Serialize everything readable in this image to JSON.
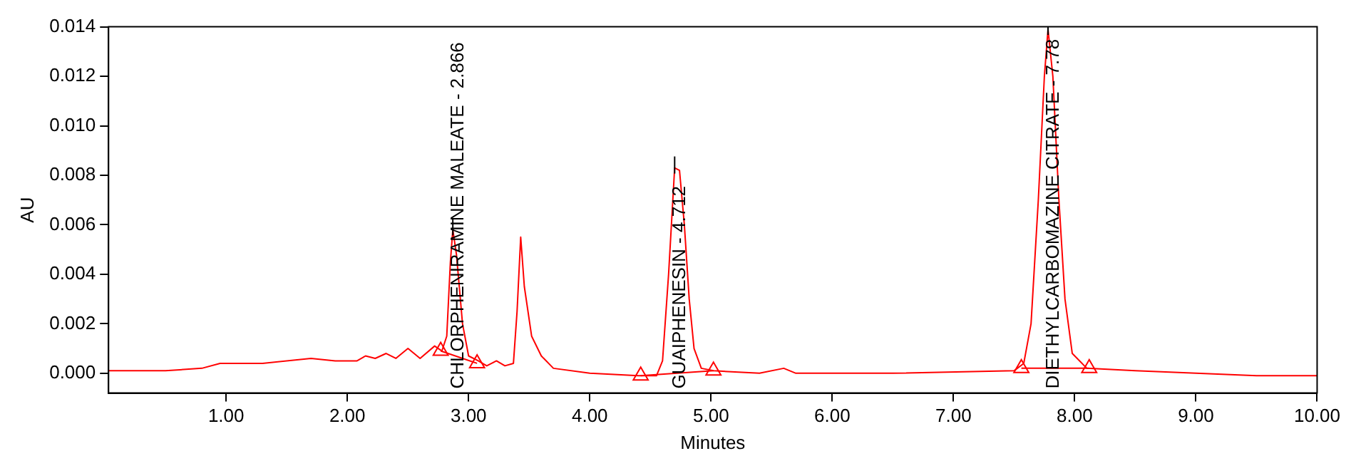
{
  "chart_data": {
    "type": "line",
    "xlabel": "Minutes",
    "ylabel": "AU",
    "xlim": [
      0.03,
      10
    ],
    "ylim": [
      -0.0008,
      0.014
    ],
    "xticks": [
      {
        "value": 1,
        "label": "1.00"
      },
      {
        "value": 2,
        "label": "2.00"
      },
      {
        "value": 3,
        "label": "3.00"
      },
      {
        "value": 4,
        "label": "4.00"
      },
      {
        "value": 5,
        "label": "5.00"
      },
      {
        "value": 6,
        "label": "6.00"
      },
      {
        "value": 7,
        "label": "7.00"
      },
      {
        "value": 8,
        "label": "8.00"
      },
      {
        "value": 9,
        "label": "9.00"
      },
      {
        "value": 10,
        "label": "10.00"
      }
    ],
    "yticks": [
      {
        "value": 0,
        "label": "0.000"
      },
      {
        "value": 0.002,
        "label": "0.002"
      },
      {
        "value": 0.004,
        "label": "0.004"
      },
      {
        "value": 0.006,
        "label": "0.006"
      },
      {
        "value": 0.008,
        "label": "0.008"
      },
      {
        "value": 0.01,
        "label": "0.010"
      },
      {
        "value": 0.012,
        "label": "0.012"
      },
      {
        "value": 0.014,
        "label": "0.014"
      }
    ],
    "grid": false,
    "legend": false,
    "series": [
      {
        "marker": "none",
        "color": "#ff0000",
        "x": [
          0.03,
          0.5,
          0.8,
          0.95,
          1.3,
          1.7,
          1.9,
          2.0,
          2.08,
          2.15,
          2.23,
          2.32,
          2.4,
          2.5,
          2.6,
          2.72,
          2.78,
          2.82,
          2.85,
          2.87,
          2.9,
          2.95,
          3.0,
          3.08,
          3.15,
          3.23,
          3.3,
          3.37,
          3.4,
          3.43,
          3.46,
          3.52,
          3.6,
          3.7,
          4.0,
          4.4,
          4.55,
          4.6,
          4.65,
          4.7,
          4.74,
          4.78,
          4.82,
          4.86,
          4.92,
          5.02,
          5.4,
          5.6,
          5.7,
          6.5,
          7.5,
          7.58,
          7.64,
          7.7,
          7.75,
          7.78,
          7.82,
          7.87,
          7.92,
          7.98,
          8.1,
          8.5,
          9.5,
          10.0
        ],
        "values": [
          0.0001,
          0.0001,
          0.0002,
          0.0004,
          0.0004,
          0.0006,
          0.0005,
          0.0005,
          0.0005,
          0.0007,
          0.0006,
          0.0008,
          0.0006,
          0.001,
          0.0006,
          0.0011,
          0.0009,
          0.0015,
          0.0045,
          0.0058,
          0.0048,
          0.002,
          0.0007,
          0.0005,
          0.0003,
          0.0005,
          0.0003,
          0.0004,
          0.0025,
          0.0055,
          0.0035,
          0.0015,
          0.0007,
          0.0002,
          0.0,
          -0.0001,
          -0.0001,
          0.0005,
          0.004,
          0.0083,
          0.0082,
          0.006,
          0.003,
          0.001,
          0.0002,
          0.0001,
          0.0,
          0.0002,
          0.0,
          0.0,
          0.0001,
          0.0004,
          0.002,
          0.007,
          0.012,
          0.0139,
          0.012,
          0.007,
          0.003,
          0.0008,
          0.0002,
          0.0001,
          -0.0001,
          -0.0001
        ]
      },
      {
        "type": "line",
        "marker": "none",
        "color": "#ff0000",
        "x": [
          2.77,
          3.07,
          3.5,
          4.42,
          5.02,
          6.0,
          7.56,
          8.12
        ],
        "values": [
          0.0009,
          0.0004,
          null,
          -0.0001,
          0.0001,
          null,
          0.0002,
          0.0002
        ]
      },
      {
        "type": "scatter",
        "marker": "triangle",
        "color": "#ff0000",
        "x": [
          2.77,
          3.07,
          4.42,
          5.02,
          7.56,
          8.12
        ],
        "values": [
          0.0009,
          0.0004,
          -0.0001,
          0.0001,
          0.0002,
          0.0002
        ]
      }
    ],
    "annotations": [
      {
        "text": "CHLORPHENIRAMINE MALEATE - 2.866",
        "x": 2.87,
        "y": 0.0058
      },
      {
        "text": "GUAIPHENESIN - 4.712",
        "x": 4.7,
        "y": 0.0083
      },
      {
        "text": "DIETHYLCARBOMAZINE CITRATE - 7.78",
        "x": 7.78,
        "y": 0.0139
      }
    ]
  }
}
